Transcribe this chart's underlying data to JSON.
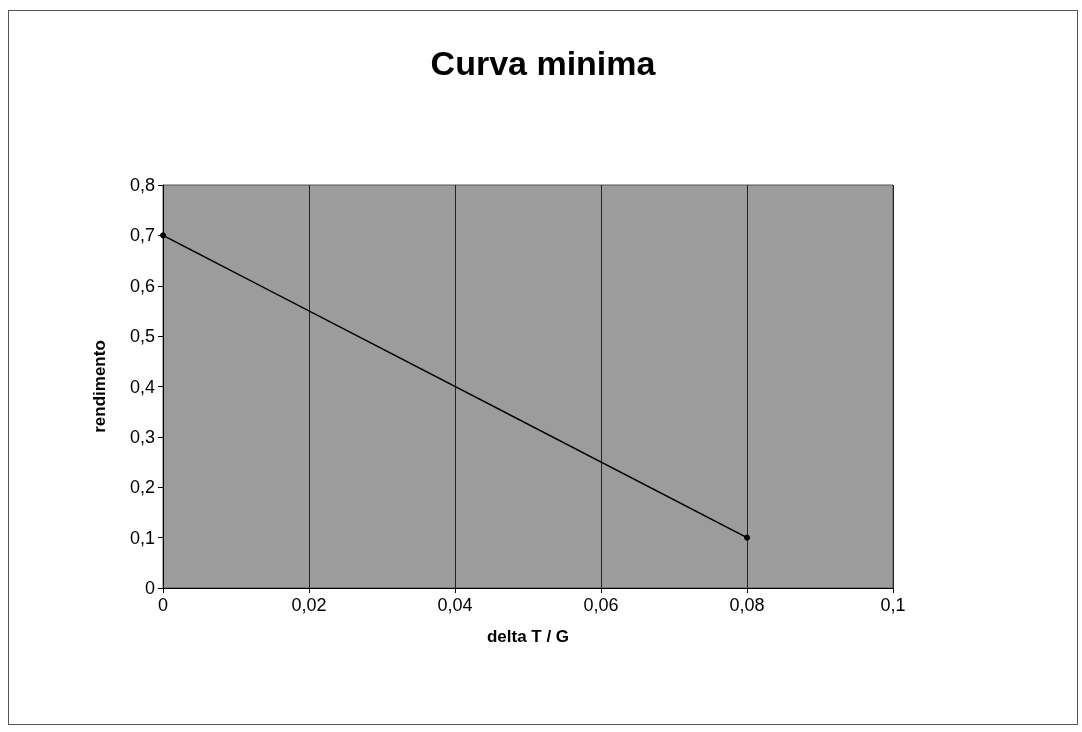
{
  "chart_data": {
    "type": "line",
    "title": "Curva minima",
    "xlabel": "delta T / G",
    "ylabel": "rendimento",
    "x": [
      0,
      0.08
    ],
    "series": [
      {
        "color": "#000000",
        "values": [
          0.7,
          0.1
        ]
      }
    ],
    "xlim": [
      0,
      0.1
    ],
    "xticks": [
      0,
      {
        "value": 0.02,
        "label": "0,02"
      },
      {
        "value": 0.04,
        "label": "0,04"
      },
      {
        "value": 0.06,
        "label": "0,06"
      },
      {
        "value": 0.08,
        "label": "0,08"
      },
      {
        "value": 0.1,
        "label": "0,1"
      }
    ],
    "ylim": [
      0,
      0.8
    ],
    "yticks": [
      0,
      {
        "value": 0.1,
        "label": "0,1"
      },
      {
        "value": 0.2,
        "label": "0,2"
      },
      {
        "value": 0.3,
        "label": "0,3"
      },
      {
        "value": 0.4,
        "label": "0,4"
      },
      {
        "value": 0.5,
        "label": "0,5"
      },
      {
        "value": 0.6,
        "label": "0,6"
      },
      {
        "value": 0.7,
        "label": "0,7"
      },
      {
        "value": 0.8,
        "label": "0,8"
      }
    ],
    "grid": "x",
    "marker": "circle",
    "line_style": "solid"
  }
}
